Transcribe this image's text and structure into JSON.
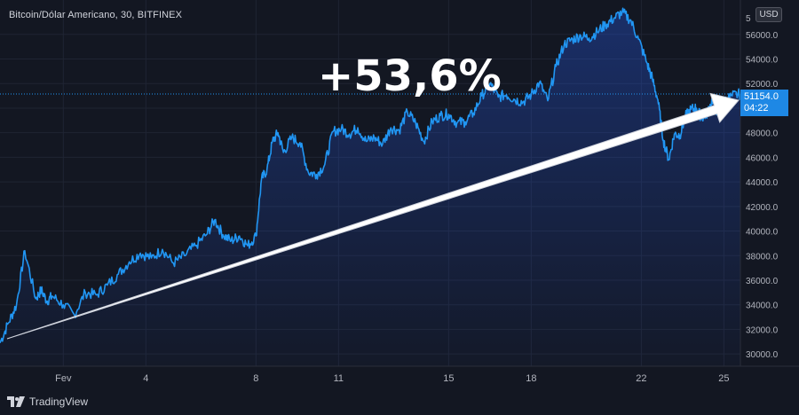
{
  "header": {
    "title": "Bitcoin/Dólar Americano, 30, BITFINEX",
    "currency_button": "USD"
  },
  "footer": {
    "brand": "TradingView"
  },
  "annotation": {
    "text": "+53,6%"
  },
  "price_badge": {
    "price": "51154.0",
    "countdown": "04:22"
  },
  "colors": {
    "background": "#131722",
    "line": "#2196f3",
    "arrow": "#ffffff",
    "badge": "#1e88e5",
    "axis_text": "#b2b5be"
  },
  "chart_data": {
    "type": "area",
    "title": "Bitcoin/Dólar Americano, 30, BITFINEX",
    "ylim": [
      29000,
      58800
    ],
    "yticks": [
      30000,
      32000,
      34000,
      36000,
      38000,
      40000,
      42000,
      44000,
      46000,
      48000,
      50000,
      52000,
      54000,
      56000
    ],
    "ytick_labels": [
      "30000.0",
      "32000.0",
      "34000.0",
      "36000.0",
      "38000.0",
      "40000.0",
      "42000.0",
      "44000.0",
      "46000.0",
      "48000.0",
      "50000.0",
      "52000.0",
      "54000.0",
      "56000.0"
    ],
    "xlim": [
      29.7,
      25.6
    ],
    "x_tick_labels": [
      "Fev",
      "4",
      "8",
      "11",
      "15",
      "18",
      "22",
      "25"
    ],
    "x_tick_days": [
      32,
      35,
      39,
      42,
      46,
      49,
      53,
      56
    ],
    "current_price": 51154.0,
    "series": [
      {
        "x_days": [
          29.7,
          30.0,
          30.3,
          30.6,
          31.0,
          31.2,
          31.4,
          31.6,
          32.0,
          32.4,
          32.8,
          33.2,
          33.6,
          34.0,
          34.4,
          34.8,
          35.2,
          35.6,
          36.0,
          36.4,
          36.8,
          37.2,
          37.5,
          37.8,
          38.1,
          38.4,
          38.7,
          39.0,
          39.2,
          39.4,
          39.6,
          39.8,
          40.0,
          40.3,
          40.6,
          40.9,
          41.2,
          41.5,
          41.8,
          42.1,
          42.4,
          42.7,
          43.0,
          43.3,
          43.6,
          43.9,
          44.2,
          44.5,
          44.8,
          45.1,
          45.4,
          45.7,
          46.0,
          46.3,
          46.6,
          46.9,
          47.2,
          47.5,
          47.8,
          48.1,
          48.4,
          48.7,
          49.0,
          49.3,
          49.6,
          49.9,
          50.2,
          50.5,
          50.8,
          51.1,
          51.4,
          51.7,
          52.0,
          52.3,
          52.6,
          52.9,
          53.2,
          53.4,
          53.6,
          53.8,
          54.0,
          54.2,
          54.4,
          54.6,
          54.8,
          55.0,
          55.2,
          55.4,
          55.6,
          55.8,
          56.0,
          56.3,
          56.6
        ],
        "y": [
          30900,
          32500,
          34000,
          38400,
          34500,
          35200,
          34300,
          34700,
          34000,
          33200,
          35000,
          34800,
          35600,
          36500,
          37500,
          38200,
          37800,
          38500,
          37400,
          38000,
          38800,
          39700,
          40900,
          39700,
          39200,
          39600,
          38800,
          39600,
          44200,
          45000,
          47300,
          48000,
          46400,
          47600,
          47200,
          44800,
          44600,
          45400,
          48100,
          48300,
          47900,
          48400,
          47300,
          47600,
          47100,
          48400,
          48200,
          49700,
          48800,
          47300,
          48900,
          49400,
          49500,
          48800,
          48900,
          49600,
          51000,
          52000,
          50900,
          51100,
          50700,
          50500,
          51100,
          52100,
          50600,
          53400,
          55200,
          55600,
          55900,
          55700,
          56200,
          56800,
          57300,
          57800,
          57200,
          55600,
          53700,
          52400,
          50700,
          47400,
          45800,
          47900,
          47800,
          49300,
          49900,
          50000,
          49200,
          49600,
          50800,
          49400,
          50600,
          51000,
          51154
        ]
      }
    ]
  }
}
